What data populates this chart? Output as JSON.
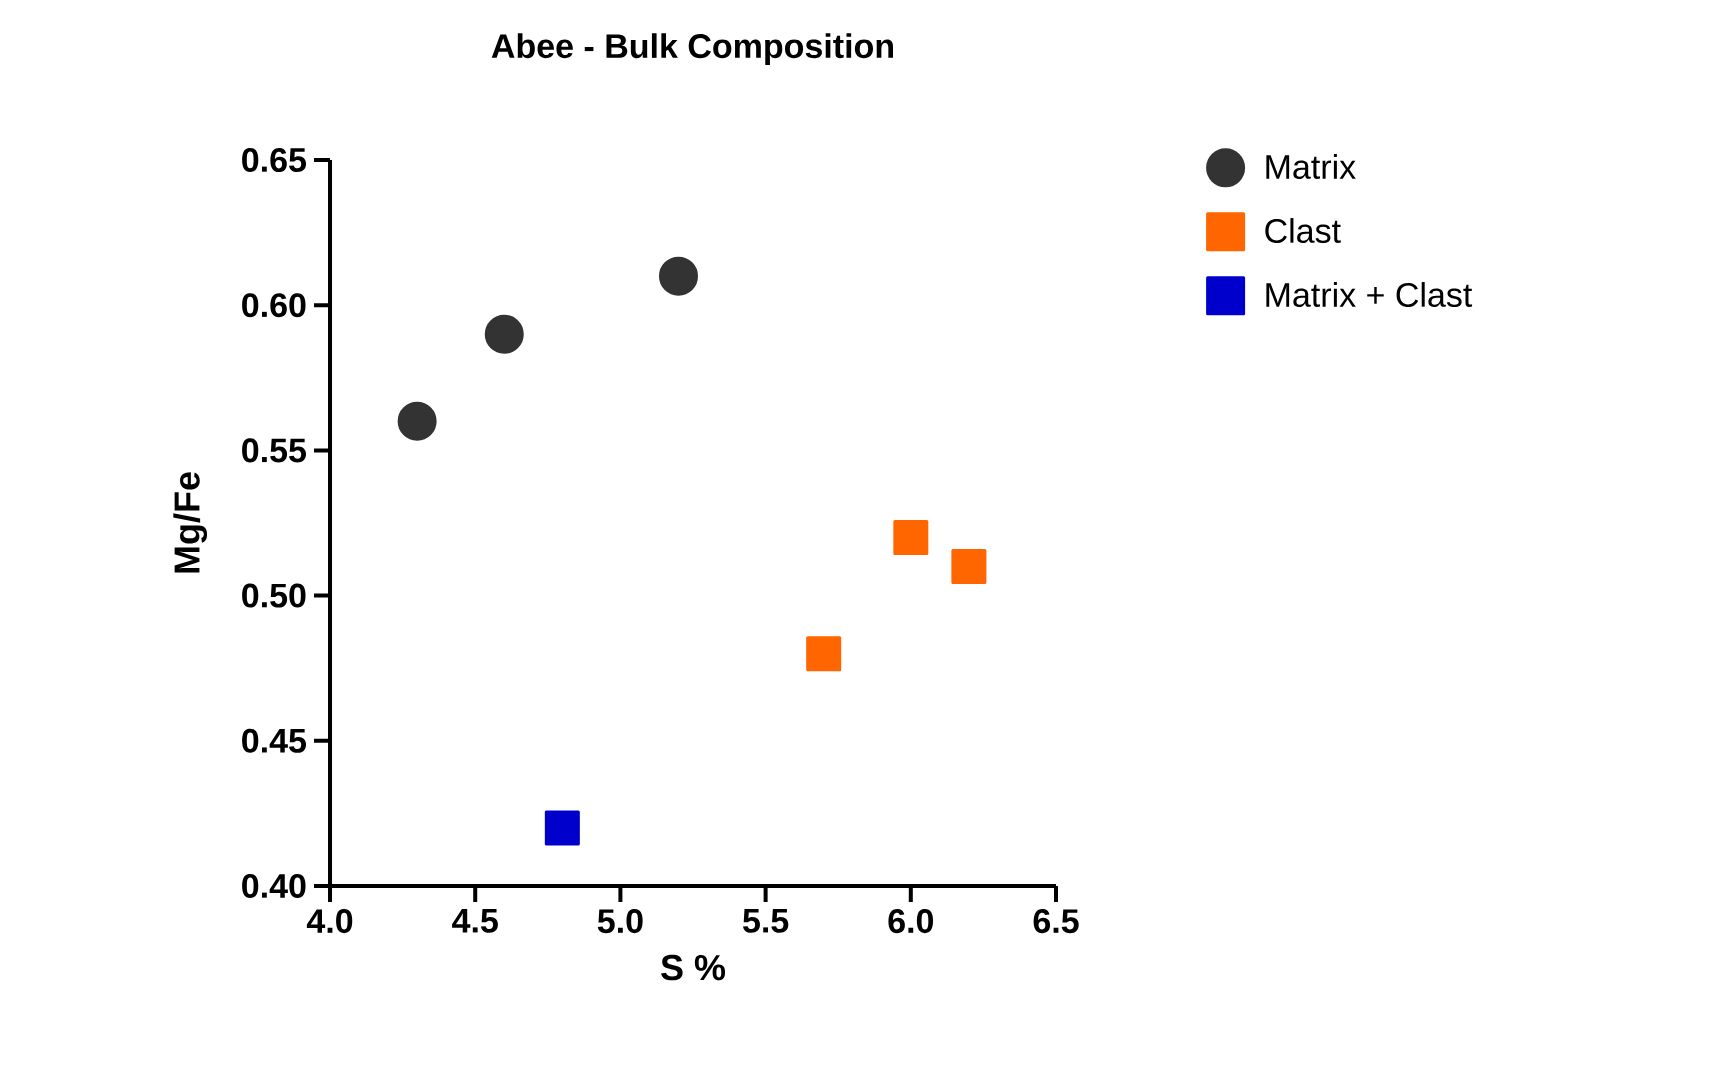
{
  "chart_data": {
    "type": "scatter",
    "title": "Abee - Bulk Composition",
    "xlabel": "S %",
    "ylabel": "Mg/Fe",
    "xlim": [
      4.0,
      6.5
    ],
    "ylim": [
      0.4,
      0.65
    ],
    "xticks": [
      {
        "value": 4.0,
        "label": "4.0"
      },
      4.5,
      {
        "value": 5.0,
        "label": "5.0"
      },
      5.5,
      {
        "value": 6.0,
        "label": "6.0"
      },
      6.5
    ],
    "yticks": [
      {
        "value": 0.4,
        "label": "0.40"
      },
      0.45,
      {
        "value": 0.5,
        "label": "0.50"
      },
      0.55,
      {
        "value": 0.6,
        "label": "0.60"
      },
      0.65
    ],
    "grid": false,
    "legend": "top right",
    "series": [
      {
        "name": "Matrix",
        "color": "#333333",
        "marker": "circle",
        "x": [
          4.3,
          4.6,
          5.2
        ],
        "values": [
          0.56,
          0.59,
          0.61
        ]
      },
      {
        "name": "Clast",
        "color": "#ff6600",
        "marker": "square",
        "x": [
          5.7,
          6.0,
          6.2
        ],
        "values": [
          0.48,
          0.52,
          0.51
        ]
      },
      {
        "name": "Matrix + Clast",
        "color": "#0000cc",
        "marker": "square",
        "x": [
          4.8
        ],
        "values": [
          0.42
        ]
      }
    ]
  }
}
